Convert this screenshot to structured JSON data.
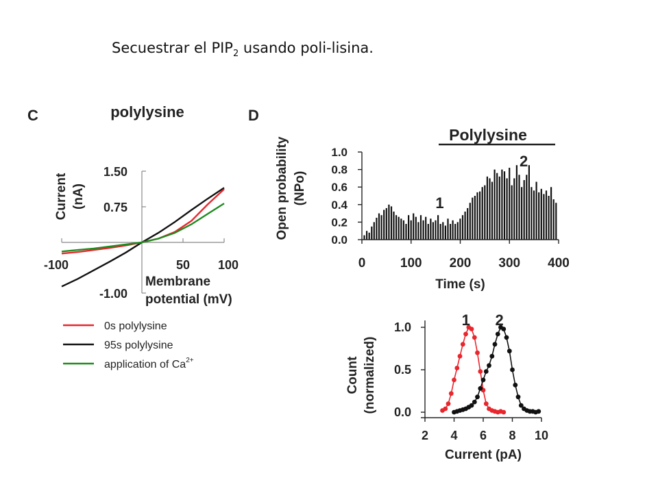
{
  "slide": {
    "title_main": "Secuestrar el PIP",
    "title_sub": "2",
    "title_rest": " usando poli-lisina."
  },
  "chart_data": [
    {
      "panel": "C",
      "type": "line",
      "title": "polylysine",
      "ylabel_line1": "Current",
      "ylabel_line2": "(nA)",
      "xlabel_line1": "Membrane",
      "xlabel_line2": "potential (mV)",
      "xlim": [
        -100,
        100
      ],
      "ylim": [
        -1.0,
        1.5
      ],
      "xticks": [
        -100,
        50,
        100
      ],
      "xtick_labels": [
        "-100",
        "50",
        "100"
      ],
      "yticks": [
        1.5,
        0.75,
        -1.0
      ],
      "ytick_labels": [
        "1.50",
        "0.75",
        "-1.00"
      ],
      "grid": false,
      "legend_position": "bottom",
      "series": [
        {
          "name": "0s polylysine",
          "color": "#e8262d",
          "x": [
            -100,
            -80,
            -60,
            -40,
            -20,
            0,
            20,
            40,
            60,
            80,
            100
          ],
          "y": [
            -0.22,
            -0.19,
            -0.15,
            -0.11,
            -0.06,
            0.0,
            0.08,
            0.22,
            0.45,
            0.8,
            1.12
          ]
        },
        {
          "name": "95s polylysine",
          "color": "#111111",
          "x": [
            -100,
            -80,
            -60,
            -40,
            -20,
            0,
            20,
            40,
            60,
            80,
            100
          ],
          "y": [
            -0.87,
            -0.72,
            -0.55,
            -0.38,
            -0.2,
            0.0,
            0.2,
            0.43,
            0.68,
            0.92,
            1.15
          ]
        },
        {
          "name": "application of Ca",
          "name_sup": "2+",
          "color": "#1f8a1f",
          "x": [
            -100,
            -80,
            -60,
            -40,
            -20,
            0,
            20,
            40,
            60,
            80,
            100
          ],
          "y": [
            -0.18,
            -0.15,
            -0.12,
            -0.08,
            -0.04,
            0.0,
            0.08,
            0.2,
            0.38,
            0.6,
            0.82
          ]
        }
      ]
    },
    {
      "panel": "D",
      "type": "bar",
      "title": "Polylysine",
      "ylabel_line1": "Open probability",
      "ylabel_line2": "(NPo)",
      "xlabel": "Time (s)",
      "xlim": [
        0,
        400
      ],
      "ylim": [
        0,
        1.0
      ],
      "xticks": [
        0,
        100,
        200,
        300,
        400
      ],
      "yticks": [
        0.0,
        0.2,
        0.4,
        0.6,
        0.8,
        1.0
      ],
      "ytick_labels": [
        "0.0",
        "0.2",
        "0.4",
        "0.6",
        "0.8",
        "1.0"
      ],
      "annotations": [
        {
          "text": "1",
          "x": 200,
          "y": 0.42,
          "color": "#e8262d"
        },
        {
          "text": "2",
          "x": 290,
          "y": 0.9,
          "color": "#222222"
        }
      ],
      "bar_width_s": 5,
      "bar_color": "#111111",
      "x": [
        5,
        10,
        15,
        20,
        25,
        30,
        35,
        40,
        45,
        50,
        55,
        60,
        65,
        70,
        75,
        80,
        85,
        90,
        95,
        100,
        105,
        110,
        115,
        120,
        125,
        130,
        135,
        140,
        145,
        150,
        155,
        160,
        165,
        170,
        175,
        180,
        185,
        190,
        195,
        200,
        205,
        210,
        215,
        220,
        225,
        230,
        235,
        240,
        245,
        250,
        255,
        260,
        265,
        270,
        275,
        280,
        285,
        290,
        295,
        300,
        305,
        310,
        315,
        320,
        325,
        330,
        335,
        340,
        345,
        350,
        355,
        360,
        365,
        370,
        375,
        380,
        385,
        390,
        395
      ],
      "values": [
        0.05,
        0.1,
        0.08,
        0.15,
        0.2,
        0.25,
        0.3,
        0.28,
        0.34,
        0.36,
        0.4,
        0.38,
        0.32,
        0.28,
        0.26,
        0.24,
        0.22,
        0.18,
        0.28,
        0.22,
        0.3,
        0.26,
        0.2,
        0.28,
        0.22,
        0.26,
        0.18,
        0.24,
        0.2,
        0.22,
        0.28,
        0.18,
        0.2,
        0.16,
        0.24,
        0.18,
        0.22,
        0.18,
        0.2,
        0.24,
        0.28,
        0.32,
        0.36,
        0.42,
        0.48,
        0.5,
        0.54,
        0.55,
        0.6,
        0.62,
        0.72,
        0.7,
        0.66,
        0.8,
        0.76,
        0.72,
        0.8,
        0.78,
        0.7,
        0.82,
        0.62,
        0.7,
        0.85,
        0.74,
        0.6,
        0.68,
        0.74,
        0.85,
        0.6,
        0.56,
        0.66,
        0.54,
        0.58,
        0.52,
        0.56,
        0.5,
        0.6,
        0.46,
        0.42
      ],
      "bracket": {
        "x_start": 155,
        "x_end": 395
      }
    },
    {
      "panel": "D-lower",
      "type": "scatter",
      "ylabel_line1": "Count",
      "ylabel_line2": "(normalized)",
      "xlabel": "Current (pA)",
      "xlim": [
        2,
        10
      ],
      "ylim": [
        0,
        1.0
      ],
      "xticks": [
        2,
        4,
        6,
        8,
        10
      ],
      "yticks": [
        0.0,
        0.5,
        1.0
      ],
      "ytick_labels": [
        "0.0",
        "0.5",
        "1.0"
      ],
      "annotations": [
        {
          "text": "1",
          "x": 5.0,
          "y": 1.09,
          "color": "#e8262d"
        },
        {
          "text": "2",
          "x": 7.3,
          "y": 1.09,
          "color": "#222222"
        }
      ],
      "series": [
        {
          "label": "1",
          "color": "#e8262d",
          "x": [
            3.2,
            3.4,
            3.6,
            3.8,
            4.0,
            4.2,
            4.4,
            4.6,
            4.8,
            5.0,
            5.2,
            5.4,
            5.6,
            5.8,
            6.0,
            6.2,
            6.4,
            6.6,
            6.8,
            7.0,
            7.2,
            7.4
          ],
          "y": [
            0.02,
            0.04,
            0.1,
            0.22,
            0.38,
            0.52,
            0.66,
            0.8,
            0.92,
            1.0,
            0.98,
            0.88,
            0.7,
            0.48,
            0.26,
            0.1,
            0.04,
            0.02,
            0.01,
            0.0,
            0.01,
            0.0
          ]
        },
        {
          "label": "2",
          "color": "#111111",
          "x": [
            4.0,
            4.2,
            4.4,
            4.6,
            4.8,
            5.0,
            5.2,
            5.4,
            5.6,
            5.8,
            6.0,
            6.2,
            6.4,
            6.6,
            6.8,
            7.0,
            7.2,
            7.4,
            7.6,
            7.8,
            8.0,
            8.2,
            8.4,
            8.6,
            8.8,
            9.0,
            9.2,
            9.4,
            9.6,
            9.8
          ],
          "y": [
            0.0,
            0.01,
            0.02,
            0.03,
            0.04,
            0.06,
            0.08,
            0.12,
            0.18,
            0.28,
            0.38,
            0.48,
            0.55,
            0.66,
            0.8,
            0.92,
            1.0,
            0.98,
            0.88,
            0.72,
            0.5,
            0.32,
            0.18,
            0.08,
            0.04,
            0.02,
            0.01,
            0.01,
            0.0,
            0.01
          ]
        }
      ]
    }
  ],
  "panel_labels": {
    "c": "C",
    "d": "D"
  }
}
